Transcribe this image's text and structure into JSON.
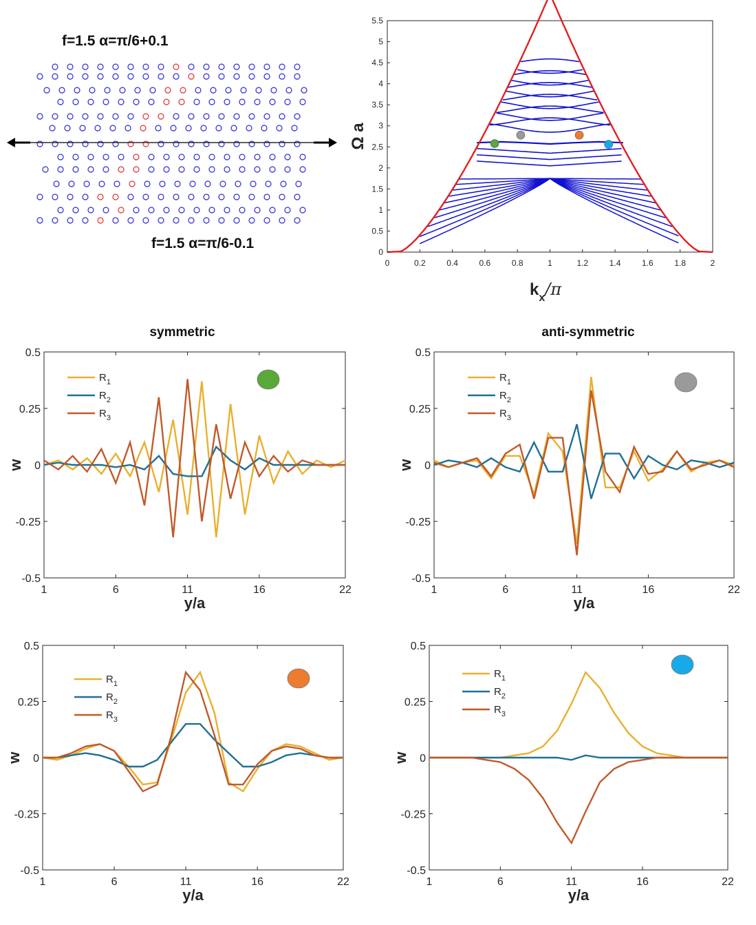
{
  "lattice": {
    "label_top": "f=1.5 α=π/6+0.1",
    "label_bottom": "f=1.5 α=π/6-0.1",
    "colors": {
      "bulk": "#2b2bd6",
      "interface": "#e03030"
    }
  },
  "chart_data": [
    {
      "id": "band",
      "type": "scatter",
      "title": "",
      "xlabel": "kx/π",
      "ylabel": "Ω a",
      "xlim": [
        0,
        2
      ],
      "ylim": [
        0,
        5.5
      ],
      "xticks": [
        "0",
        "0.2",
        "0.4",
        "0.6",
        "0.8",
        "1",
        "1.2",
        "1.4",
        "1.6",
        "1.8",
        "2"
      ],
      "yticks": [
        "0",
        "0.5",
        "1",
        "1.5",
        "2",
        "2.5",
        "3",
        "3.5",
        "4",
        "4.5",
        "5",
        "5.5"
      ],
      "boundary_color": "#e02020",
      "band_color": "#1010d0",
      "edge_band": {
        "x": [
          0.55,
          0.7,
          0.85,
          1.0,
          1.15,
          1.3,
          1.45
        ],
        "y": [
          2.6,
          2.62,
          2.6,
          2.57,
          2.6,
          2.62,
          2.6
        ]
      },
      "markers": [
        {
          "name": "green",
          "x": 0.66,
          "y": 2.58,
          "color": "#5aa83a"
        },
        {
          "name": "grey",
          "x": 0.82,
          "y": 2.78,
          "color": "#9a9a9a"
        },
        {
          "name": "orange",
          "x": 1.18,
          "y": 2.78,
          "color": "#ed7b30"
        },
        {
          "name": "blue",
          "x": 1.36,
          "y": 2.56,
          "color": "#1aa9e8"
        }
      ]
    },
    {
      "id": "green",
      "type": "line",
      "title": "symmetric",
      "xlabel": "y/a",
      "ylabel": "w",
      "xlim": [
        1,
        22
      ],
      "ylim": [
        -0.5,
        0.5
      ],
      "xticks": [
        "1",
        "6",
        "11",
        "16",
        "22"
      ],
      "yticks": [
        "0.5",
        "0.25",
        "0",
        "-0.25",
        "-0.5"
      ],
      "marker_color": "#5aa83a",
      "x": [
        1,
        2,
        3,
        4,
        5,
        6,
        7,
        8,
        9,
        10,
        11,
        12,
        13,
        14,
        15,
        16,
        17,
        18,
        19,
        20,
        21,
        22
      ],
      "series": [
        {
          "name": "R",
          "sub": "1",
          "color": "#e8b02e",
          "values": [
            0.0,
            0.02,
            -0.02,
            0.03,
            -0.04,
            0.05,
            -0.05,
            0.1,
            -0.12,
            0.2,
            -0.22,
            0.37,
            -0.32,
            0.27,
            -0.22,
            0.13,
            -0.08,
            0.06,
            -0.04,
            0.02,
            -0.01,
            0.02
          ]
        },
        {
          "name": "R",
          "sub": "2",
          "color": "#1f6f96",
          "values": [
            0.0,
            0.01,
            0.0,
            0.0,
            0.0,
            -0.01,
            0.0,
            -0.02,
            0.04,
            -0.04,
            -0.05,
            -0.05,
            0.08,
            0.02,
            -0.02,
            0.03,
            0.0,
            0.0,
            0.0,
            0.0,
            0.0,
            0.0
          ]
        },
        {
          "name": "R",
          "sub": "3",
          "color": "#c05a2a",
          "values": [
            0.02,
            -0.02,
            0.04,
            -0.03,
            0.07,
            -0.08,
            0.1,
            -0.18,
            0.3,
            -0.32,
            0.38,
            -0.25,
            0.18,
            -0.15,
            0.1,
            -0.05,
            0.04,
            -0.03,
            0.02,
            0.0,
            0.0,
            0.0
          ]
        }
      ]
    },
    {
      "id": "grey",
      "type": "line",
      "title": "anti-symmetric",
      "xlabel": "y/a",
      "ylabel": "w",
      "xlim": [
        1,
        22
      ],
      "ylim": [
        -0.5,
        0.5
      ],
      "xticks": [
        "1",
        "6",
        "11",
        "16",
        "22"
      ],
      "yticks": [
        "0.5",
        "0.25",
        "0",
        "-0.25",
        "-0.5"
      ],
      "marker_color": "#9a9a9a",
      "x": [
        1,
        2,
        3,
        4,
        5,
        6,
        7,
        8,
        9,
        10,
        11,
        12,
        13,
        14,
        15,
        16,
        17,
        18,
        19,
        20,
        21,
        22
      ],
      "series": [
        {
          "name": "R",
          "sub": "1",
          "color": "#e8b02e",
          "values": [
            0.02,
            -0.01,
            0.01,
            0.02,
            -0.06,
            0.04,
            0.04,
            -0.13,
            0.14,
            0.06,
            -0.35,
            0.39,
            -0.1,
            -0.1,
            0.06,
            -0.07,
            -0.02,
            0.06,
            -0.03,
            0.01,
            0.02,
            0.0
          ]
        },
        {
          "name": "R",
          "sub": "2",
          "color": "#1f6f96",
          "values": [
            0.0,
            0.02,
            0.01,
            -0.01,
            0.03,
            -0.01,
            -0.03,
            0.1,
            -0.03,
            -0.03,
            0.18,
            -0.15,
            0.05,
            0.05,
            -0.06,
            0.04,
            0.0,
            -0.02,
            0.02,
            0.01,
            -0.01,
            0.01
          ]
        },
        {
          "name": "R",
          "sub": "3",
          "color": "#c05a2a",
          "values": [
            0.01,
            -0.01,
            0.01,
            0.03,
            -0.05,
            0.05,
            0.09,
            -0.15,
            0.12,
            0.12,
            -0.4,
            0.33,
            -0.03,
            -0.12,
            0.08,
            -0.04,
            -0.03,
            0.06,
            -0.02,
            0.0,
            0.02,
            -0.01
          ]
        }
      ]
    },
    {
      "id": "orange",
      "type": "line",
      "title": "",
      "xlabel": "y/a",
      "ylabel": "w",
      "xlim": [
        1,
        22
      ],
      "ylim": [
        -0.5,
        0.5
      ],
      "xticks": [
        "1",
        "6",
        "11",
        "16",
        "22"
      ],
      "yticks": [
        "0.5",
        "0.25",
        "0",
        "-0.25",
        "-0.5"
      ],
      "marker_color": "#ed7b30",
      "x": [
        1,
        2,
        3,
        4,
        5,
        6,
        7,
        8,
        9,
        10,
        11,
        12,
        13,
        14,
        15,
        16,
        17,
        18,
        19,
        20,
        21,
        22
      ],
      "series": [
        {
          "name": "R",
          "sub": "1",
          "color": "#e8b02e",
          "values": [
            0.0,
            -0.01,
            0.01,
            0.04,
            0.06,
            0.03,
            -0.04,
            -0.12,
            -0.11,
            0.08,
            0.29,
            0.38,
            0.2,
            -0.11,
            -0.15,
            -0.05,
            0.03,
            0.06,
            0.05,
            0.02,
            -0.01,
            0.0
          ]
        },
        {
          "name": "R",
          "sub": "2",
          "color": "#1f6f96",
          "values": [
            0.0,
            0.0,
            0.01,
            0.02,
            0.01,
            -0.01,
            -0.04,
            -0.04,
            -0.01,
            0.07,
            0.15,
            0.15,
            0.08,
            0.02,
            -0.04,
            -0.04,
            -0.02,
            0.01,
            0.02,
            0.01,
            0.0,
            0.0
          ]
        },
        {
          "name": "R",
          "sub": "3",
          "color": "#c05a2a",
          "values": [
            0.0,
            0.0,
            0.02,
            0.05,
            0.06,
            0.03,
            -0.06,
            -0.15,
            -0.12,
            0.1,
            0.38,
            0.3,
            0.1,
            -0.12,
            -0.12,
            -0.03,
            0.03,
            0.05,
            0.04,
            0.01,
            0.0,
            0.0
          ]
        }
      ]
    },
    {
      "id": "blue",
      "type": "line",
      "title": "",
      "xlabel": "y/a",
      "ylabel": "w",
      "xlim": [
        1,
        22
      ],
      "ylim": [
        -0.5,
        0.5
      ],
      "xticks": [
        "1",
        "6",
        "11",
        "16",
        "22"
      ],
      "yticks": [
        "0.5",
        "0.25",
        "0",
        "-0.25",
        "-0.5"
      ],
      "marker_color": "#1aa9e8",
      "x": [
        1,
        2,
        3,
        4,
        5,
        6,
        7,
        8,
        9,
        10,
        11,
        12,
        13,
        14,
        15,
        16,
        17,
        18,
        19,
        20,
        21,
        22
      ],
      "series": [
        {
          "name": "R",
          "sub": "1",
          "color": "#e8b02e",
          "values": [
            0.0,
            0.0,
            0.0,
            0.0,
            0.0,
            0.0,
            0.01,
            0.02,
            0.05,
            0.12,
            0.24,
            0.38,
            0.31,
            0.2,
            0.11,
            0.05,
            0.02,
            0.01,
            0.0,
            0.0,
            0.0,
            0.0
          ]
        },
        {
          "name": "R",
          "sub": "2",
          "color": "#1f6f96",
          "values": [
            0.0,
            0.0,
            0.0,
            0.0,
            0.0,
            0.0,
            0.0,
            0.0,
            0.0,
            0.0,
            -0.01,
            0.01,
            0.0,
            0.0,
            0.0,
            0.0,
            0.0,
            0.0,
            0.0,
            0.0,
            0.0,
            0.0
          ]
        },
        {
          "name": "R",
          "sub": "3",
          "color": "#c05a2a",
          "values": [
            0.0,
            0.0,
            0.0,
            0.0,
            -0.01,
            -0.02,
            -0.05,
            -0.1,
            -0.18,
            -0.29,
            -0.38,
            -0.24,
            -0.11,
            -0.05,
            -0.02,
            -0.01,
            0.0,
            0.0,
            0.0,
            0.0,
            0.0,
            0.0
          ]
        }
      ]
    }
  ]
}
